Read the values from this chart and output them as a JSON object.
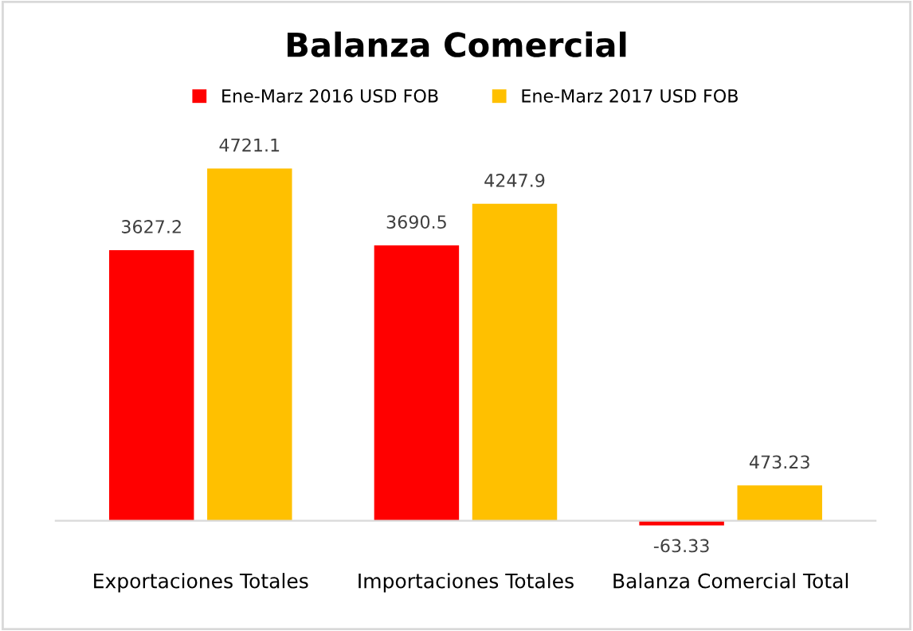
{
  "chart_data": {
    "type": "bar",
    "title": "Balanza Comercial",
    "categories": [
      "Exportaciones Totales",
      "Importaciones Totales",
      "Balanza Comercial Total"
    ],
    "series": [
      {
        "name": "Ene-Marz 2016 USD FOB",
        "color": "#ff0000",
        "values": [
          3627.2,
          3690.5,
          -63.33
        ]
      },
      {
        "name": "Ene-Marz 2017 USD FOB",
        "color": "#ffc000",
        "values": [
          4721.1,
          4247.9,
          473.23
        ]
      }
    ],
    "data_labels": true,
    "legend": "top",
    "grid": false
  }
}
